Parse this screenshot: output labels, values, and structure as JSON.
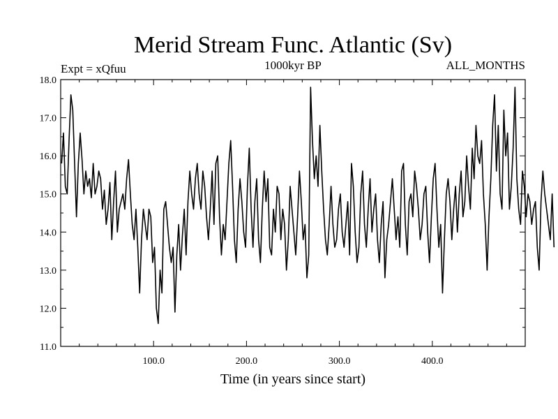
{
  "chart_data": {
    "type": "line",
    "title": "Merid Stream Func. Atlantic (Sv)",
    "subtitle_left": "Expt = xQfuu",
    "subtitle_center": "1000kyr BP",
    "subtitle_right": "ALL_MONTHS",
    "xlabel": "Time (in years since start)",
    "ylabel": "",
    "xlim": [
      0,
      500
    ],
    "ylim": [
      11.0,
      18.0
    ],
    "x_ticks": [
      100,
      200,
      300,
      400
    ],
    "x_tick_labels": [
      "100.0",
      "200.0",
      "300.0",
      "400.0"
    ],
    "y_ticks": [
      11,
      12,
      13,
      14,
      15,
      16,
      17,
      18
    ],
    "y_tick_labels": [
      "11.0",
      "12.0",
      "13.0",
      "14.0",
      "15.0",
      "16.0",
      "17.0",
      "18.0"
    ],
    "series": [
      {
        "name": "Merid Stream Func. Atlantic",
        "x_start": 1,
        "x_step": 2,
        "values": [
          15.8,
          16.6,
          15.2,
          15.0,
          16.4,
          17.6,
          17.2,
          15.8,
          14.4,
          15.8,
          16.6,
          15.9,
          15.0,
          15.6,
          15.2,
          15.4,
          14.9,
          15.8,
          15.0,
          15.2,
          15.6,
          15.4,
          14.6,
          15.1,
          14.2,
          14.6,
          15.3,
          13.8,
          14.8,
          15.6,
          14.0,
          14.6,
          14.8,
          15.0,
          14.6,
          15.4,
          15.9,
          15.0,
          14.2,
          13.8,
          14.6,
          13.6,
          12.4,
          13.8,
          14.6,
          14.2,
          13.8,
          14.6,
          14.4,
          13.2,
          13.6,
          12.0,
          11.6,
          13.0,
          12.4,
          14.6,
          14.8,
          14.2,
          13.6,
          13.2,
          13.6,
          11.9,
          13.4,
          14.2,
          13.0,
          13.9,
          14.6,
          13.4,
          14.8,
          15.6,
          15.0,
          14.6,
          15.4,
          15.8,
          15.0,
          14.6,
          15.6,
          15.2,
          14.4,
          13.8,
          14.6,
          15.6,
          14.2,
          15.8,
          16.0,
          14.4,
          13.4,
          14.2,
          13.8,
          14.8,
          15.8,
          16.4,
          15.2,
          13.8,
          13.2,
          14.6,
          15.4,
          14.8,
          14.0,
          13.6,
          15.2,
          16.2,
          14.6,
          13.6,
          14.8,
          15.4,
          13.8,
          13.2,
          14.6,
          15.6,
          14.8,
          15.4,
          13.6,
          13.4,
          14.6,
          14.0,
          15.2,
          15.0,
          13.8,
          14.6,
          14.2,
          13.0,
          13.8,
          15.2,
          14.6,
          14.0,
          13.4,
          14.4,
          15.6,
          14.8,
          13.8,
          14.2,
          12.8,
          13.4,
          17.8,
          16.4,
          15.4,
          16.0,
          15.2,
          16.8,
          15.6,
          14.6,
          13.8,
          13.4,
          14.2,
          15.2,
          14.2,
          13.6,
          13.8,
          14.6,
          15.0,
          14.0,
          13.6,
          14.2,
          14.8,
          13.4,
          15.8,
          15.2,
          14.0,
          13.2,
          13.6,
          15.0,
          15.6,
          14.2,
          13.6,
          14.6,
          15.4,
          14.0,
          14.6,
          15.0,
          13.8,
          13.2,
          14.2,
          14.8,
          12.8,
          13.8,
          14.2,
          14.8,
          15.4,
          14.6,
          13.8,
          14.4,
          13.6,
          15.6,
          15.8,
          14.2,
          13.4,
          14.8,
          15.0,
          14.4,
          15.6,
          15.2,
          14.6,
          13.8,
          14.2,
          15.0,
          15.2,
          14.0,
          13.2,
          14.4,
          15.4,
          15.8,
          14.6,
          13.6,
          14.2,
          12.4,
          13.8,
          15.0,
          15.4,
          14.8,
          13.8,
          14.6,
          15.2,
          14.0,
          15.0,
          15.6,
          14.4,
          14.8,
          16.0,
          15.2,
          14.6,
          16.2,
          15.4,
          16.8,
          16.0,
          15.8,
          16.4,
          15.0,
          14.2,
          13.0,
          14.4,
          15.4,
          16.8,
          17.6,
          15.6,
          16.8,
          15.0,
          14.6,
          17.2,
          16.0,
          16.6,
          14.6,
          15.2,
          16.2,
          17.8,
          15.4,
          14.6,
          14.2,
          15.6,
          15.2,
          14.4,
          15.0,
          14.8,
          14.2,
          14.6,
          14.8,
          13.6,
          13.0,
          14.8,
          15.6,
          15.0,
          14.6,
          14.2,
          13.8,
          15.0,
          13.6
        ]
      }
    ]
  }
}
